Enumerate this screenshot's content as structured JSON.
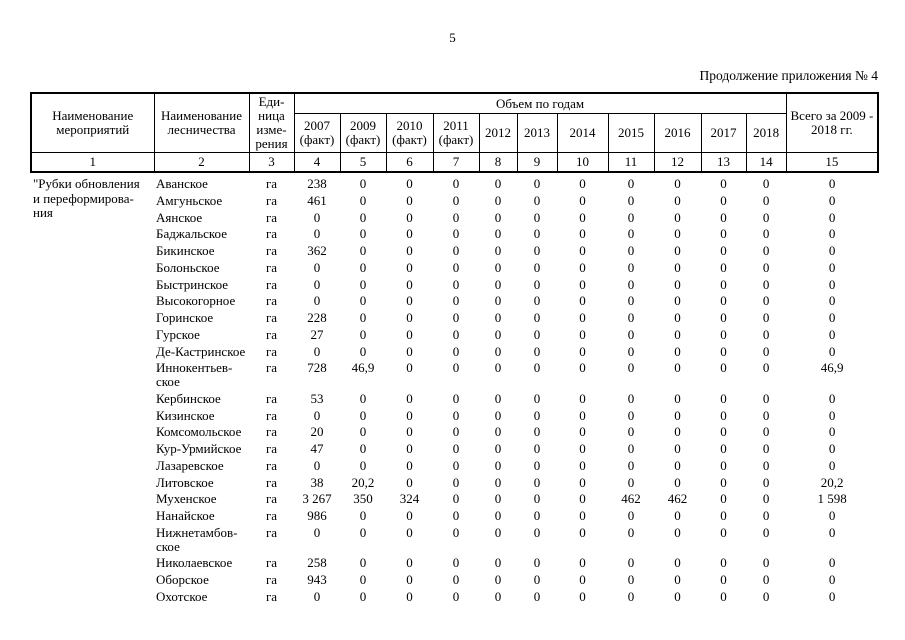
{
  "page": {
    "number": "5",
    "caption": "Продолжение приложения № 4"
  },
  "table": {
    "header": {
      "col_activity": "Наименование\nмероприятий",
      "col_forestry": "Наименование\nлесничества",
      "col_unit": "Еди-\nница\nизме-\nрения",
      "col_volume_band": "Объем по годам",
      "year_cols": [
        "2007\n(факт)",
        "2009\n(факт)",
        "2010\n(факт)",
        "2011\n(факт)",
        "2012",
        "2013",
        "2014",
        "2015",
        "2016",
        "2017",
        "2018"
      ],
      "col_total": "Всего за 2009 -\n2018 гг.",
      "index_row": [
        "1",
        "2",
        "3",
        "4",
        "5",
        "6",
        "7",
        "8",
        "9",
        "10",
        "11",
        "12",
        "13",
        "14",
        "15"
      ]
    },
    "activity": "\"Рубки обновления\nи переформирова-\nния",
    "unit_label": "га",
    "rows": [
      {
        "forestry": "Аванское",
        "unit": "га",
        "values": [
          "238",
          "0",
          "0",
          "0",
          "0",
          "0",
          "0",
          "0",
          "0",
          "0",
          "0"
        ],
        "total": "0"
      },
      {
        "forestry": "Амгуньское",
        "unit": "га",
        "values": [
          "461",
          "0",
          "0",
          "0",
          "0",
          "0",
          "0",
          "0",
          "0",
          "0",
          "0"
        ],
        "total": "0"
      },
      {
        "forestry": "Аянское",
        "unit": "га",
        "values": [
          "0",
          "0",
          "0",
          "0",
          "0",
          "0",
          "0",
          "0",
          "0",
          "0",
          "0"
        ],
        "total": "0"
      },
      {
        "forestry": "Баджальское",
        "unit": "га",
        "values": [
          "0",
          "0",
          "0",
          "0",
          "0",
          "0",
          "0",
          "0",
          "0",
          "0",
          "0"
        ],
        "total": "0"
      },
      {
        "forestry": "Бикинское",
        "unit": "га",
        "values": [
          "362",
          "0",
          "0",
          "0",
          "0",
          "0",
          "0",
          "0",
          "0",
          "0",
          "0"
        ],
        "total": "0"
      },
      {
        "forestry": "Болоньское",
        "unit": "га",
        "values": [
          "0",
          "0",
          "0",
          "0",
          "0",
          "0",
          "0",
          "0",
          "0",
          "0",
          "0"
        ],
        "total": "0"
      },
      {
        "forestry": "Быстринское",
        "unit": "га",
        "values": [
          "0",
          "0",
          "0",
          "0",
          "0",
          "0",
          "0",
          "0",
          "0",
          "0",
          "0"
        ],
        "total": "0"
      },
      {
        "forestry": "Высокогорное",
        "unit": "га",
        "values": [
          "0",
          "0",
          "0",
          "0",
          "0",
          "0",
          "0",
          "0",
          "0",
          "0",
          "0"
        ],
        "total": "0"
      },
      {
        "forestry": "Горинское",
        "unit": "га",
        "values": [
          "228",
          "0",
          "0",
          "0",
          "0",
          "0",
          "0",
          "0",
          "0",
          "0",
          "0"
        ],
        "total": "0"
      },
      {
        "forestry": "Гурское",
        "unit": "га",
        "values": [
          "27",
          "0",
          "0",
          "0",
          "0",
          "0",
          "0",
          "0",
          "0",
          "0",
          "0"
        ],
        "total": "0"
      },
      {
        "forestry": "Де-Кастринское",
        "unit": "га",
        "values": [
          "0",
          "0",
          "0",
          "0",
          "0",
          "0",
          "0",
          "0",
          "0",
          "0",
          "0"
        ],
        "total": "0"
      },
      {
        "forestry": "Иннокентьев-\nское",
        "unit": "га",
        "values": [
          "728",
          "46,9",
          "0",
          "0",
          "0",
          "0",
          "0",
          "0",
          "0",
          "0",
          "0"
        ],
        "total": "46,9"
      },
      {
        "forestry": "Кербинское",
        "unit": "га",
        "values": [
          "53",
          "0",
          "0",
          "0",
          "0",
          "0",
          "0",
          "0",
          "0",
          "0",
          "0"
        ],
        "total": "0"
      },
      {
        "forestry": "Кизинское",
        "unit": "га",
        "values": [
          "0",
          "0",
          "0",
          "0",
          "0",
          "0",
          "0",
          "0",
          "0",
          "0",
          "0"
        ],
        "total": "0"
      },
      {
        "forestry": "Комсомольское",
        "unit": "га",
        "values": [
          "20",
          "0",
          "0",
          "0",
          "0",
          "0",
          "0",
          "0",
          "0",
          "0",
          "0"
        ],
        "total": "0"
      },
      {
        "forestry": "Кур-Урмийское",
        "unit": "га",
        "values": [
          "47",
          "0",
          "0",
          "0",
          "0",
          "0",
          "0",
          "0",
          "0",
          "0",
          "0"
        ],
        "total": "0"
      },
      {
        "forestry": "Лазаревское",
        "unit": "га",
        "values": [
          "0",
          "0",
          "0",
          "0",
          "0",
          "0",
          "0",
          "0",
          "0",
          "0",
          "0"
        ],
        "total": "0"
      },
      {
        "forestry": "Литовское",
        "unit": "га",
        "values": [
          "38",
          "20,2",
          "0",
          "0",
          "0",
          "0",
          "0",
          "0",
          "0",
          "0",
          "0"
        ],
        "total": "20,2"
      },
      {
        "forestry": "Мухенское",
        "unit": "га",
        "values": [
          "3 267",
          "350",
          "324",
          "0",
          "0",
          "0",
          "0",
          "462",
          "462",
          "0",
          "0"
        ],
        "total": "1 598"
      },
      {
        "forestry": "Нанайское",
        "unit": "га",
        "values": [
          "986",
          "0",
          "0",
          "0",
          "0",
          "0",
          "0",
          "0",
          "0",
          "0",
          "0"
        ],
        "total": "0"
      },
      {
        "forestry": "Нижнетамбов-\nское",
        "unit": "га",
        "values": [
          "0",
          "0",
          "0",
          "0",
          "0",
          "0",
          "0",
          "0",
          "0",
          "0",
          "0"
        ],
        "total": "0"
      },
      {
        "forestry": "Николаевское",
        "unit": "га",
        "values": [
          "258",
          "0",
          "0",
          "0",
          "0",
          "0",
          "0",
          "0",
          "0",
          "0",
          "0"
        ],
        "total": "0"
      },
      {
        "forestry": "Оборское",
        "unit": "га",
        "values": [
          "943",
          "0",
          "0",
          "0",
          "0",
          "0",
          "0",
          "0",
          "0",
          "0",
          "0"
        ],
        "total": "0"
      },
      {
        "forestry": "Охотское",
        "unit": "га",
        "values": [
          "0",
          "0",
          "0",
          "0",
          "0",
          "0",
          "0",
          "0",
          "0",
          "0",
          "0"
        ],
        "total": "0"
      }
    ]
  }
}
